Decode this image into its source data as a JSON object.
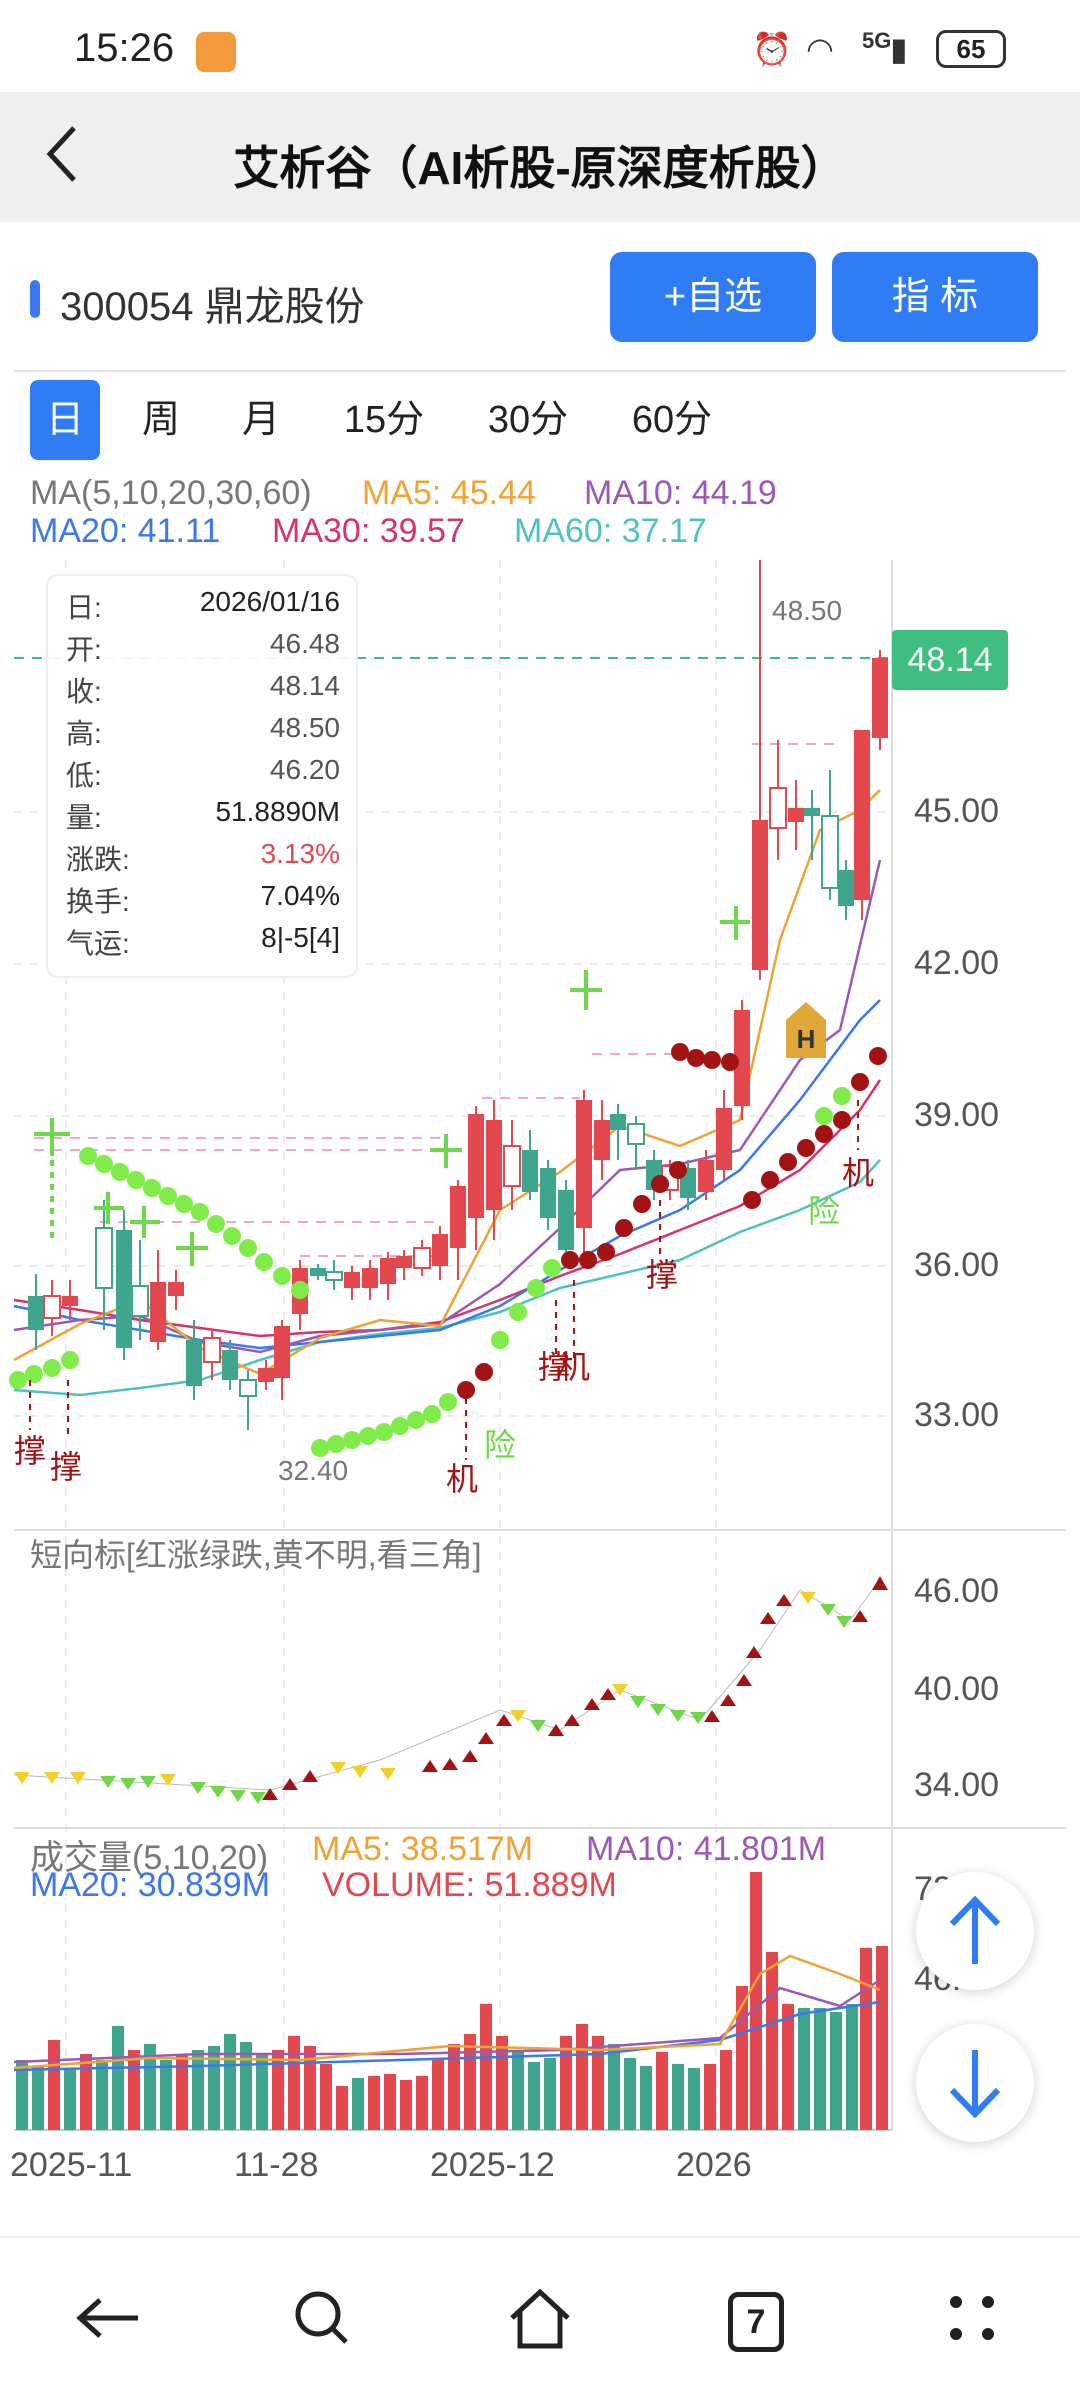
{
  "status_bar": {
    "time": "15:26",
    "battery": "65",
    "network": "5G"
  },
  "header": {
    "title": "艾析谷（AI析股-原深度析股）"
  },
  "stock": {
    "code_name": "300054 鼎龙股份",
    "watchlist_button": "+自选",
    "indicator_button": "指  标"
  },
  "period_tabs": [
    {
      "label": "日",
      "active": true
    },
    {
      "label": "周",
      "active": false
    },
    {
      "label": "月",
      "active": false
    },
    {
      "label": "15分",
      "active": false
    },
    {
      "label": "30分",
      "active": false
    },
    {
      "label": "60分",
      "active": false
    }
  ],
  "ma_legend": {
    "name": "MA(5,10,20,30,60)",
    "ma5": "MA5: 45.44",
    "ma10": "MA10: 44.19",
    "ma20": "MA20: 41.11",
    "ma30": "MA30: 39.57",
    "ma60": "MA60: 37.17"
  },
  "info_box": [
    {
      "k": "日:",
      "v": "2026/01/16"
    },
    {
      "k": "开:",
      "v": "46.48"
    },
    {
      "k": "收:",
      "v": "48.14"
    },
    {
      "k": "高:",
      "v": "48.50"
    },
    {
      "k": "低:",
      "v": "46.20"
    },
    {
      "k": "量:",
      "v": "51.8890M"
    },
    {
      "k": "涨跌:",
      "v": "3.13%"
    },
    {
      "k": "换手:",
      "v": "7.04%"
    },
    {
      "k": "气运:",
      "v": "8|-5[4]"
    }
  ],
  "main_chart": {
    "y_labels": [
      "45.00",
      "42.00",
      "39.00",
      "36.00",
      "33.00"
    ],
    "current_price": "48.14",
    "high_marker": "48.50",
    "low_marker": "32.40",
    "annotations": [
      "撑",
      "撑",
      "机",
      "险",
      "撑",
      "机",
      "撑",
      "险",
      "机",
      "H"
    ]
  },
  "short_indicator": {
    "title": "短向标[红涨绿跌,黄不明,看三角]",
    "y_labels": [
      "46.00",
      "40.00",
      "34.00"
    ]
  },
  "volume": {
    "title": "成交量(5,10,20)",
    "ma5": "MA5: 38.517M",
    "ma10": "MA10: 41.801M",
    "ma20": "MA20: 30.839M",
    "volume": "VOLUME: 51.889M",
    "y_labels": [
      "72",
      "46.",
      ""
    ]
  },
  "x_axis": [
    "2025-11",
    "11-28",
    "2025-12",
    "2026"
  ],
  "colors": {
    "up": "#e4484f",
    "down": "#3fa58f",
    "ma5": "#f0a233",
    "ma10": "#9b59b6",
    "ma20": "#3a78f0",
    "ma30": "#d6336c",
    "ma60": "#4fc1c1",
    "accent": "#2f7cf4"
  },
  "navigation": {
    "tab_count": "7"
  }
}
